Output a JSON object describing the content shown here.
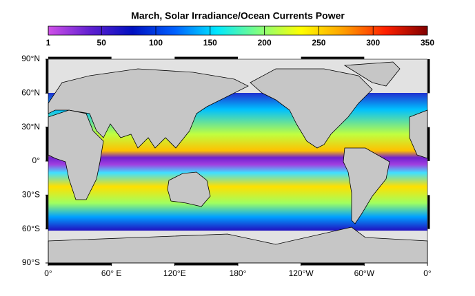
{
  "title": "March, Solar Irradiance/Ocean Currents Power",
  "colorbar": {
    "lim": [
      1,
      350
    ],
    "ticks": [
      1,
      50,
      100,
      150,
      200,
      250,
      300,
      350
    ],
    "colors": [
      "#d050e8",
      "#6020d0",
      "#0010c0",
      "#0060ff",
      "#00e8ff",
      "#80ff80",
      "#ffff00",
      "#ffa000",
      "#ff2000",
      "#800000"
    ]
  },
  "map": {
    "lat_ticks": [
      {
        "value": 90,
        "label": "90°N"
      },
      {
        "value": 60,
        "label": "60°N"
      },
      {
        "value": 30,
        "label": "30°N"
      },
      {
        "value": 0,
        "label": "0°"
      },
      {
        "value": -30,
        "label": "30°S"
      },
      {
        "value": -60,
        "label": "60°S"
      },
      {
        "value": -90,
        "label": "90°S"
      }
    ],
    "lon_ticks": [
      {
        "value": 0,
        "label": "0°"
      },
      {
        "value": 60,
        "label": "60° E"
      },
      {
        "value": 120,
        "label": "120°E"
      },
      {
        "value": 180,
        "label": "180°"
      },
      {
        "value": 240,
        "label": "120°W"
      },
      {
        "value": 300,
        "label": "60°W"
      },
      {
        "value": 360,
        "label": "0°"
      }
    ]
  }
}
